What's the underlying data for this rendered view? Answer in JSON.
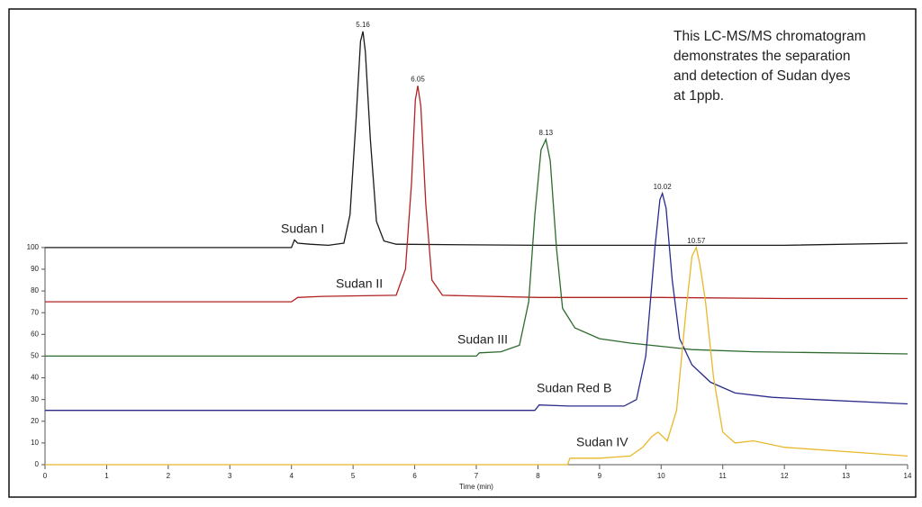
{
  "chart_data": {
    "type": "line",
    "annotation": [
      "This LC-MS/MS chromatogram",
      "demonstrates the separation",
      "and detection of Sudan dyes",
      "at 1ppb."
    ],
    "xlabel": "Time (min)",
    "xlim": [
      0,
      14
    ],
    "xticks": [
      0,
      1,
      2,
      3,
      4,
      5,
      6,
      7,
      8,
      9,
      10,
      11,
      12,
      13,
      14
    ],
    "ylim": [
      0,
      209
    ],
    "yticks": [
      0,
      10,
      20,
      30,
      40,
      50,
      60,
      70,
      80,
      90,
      100
    ],
    "series": [
      {
        "name": "Sudan I",
        "color": "#1a1a1a",
        "peak": 5.16,
        "x": [
          0,
          4.0,
          4.05,
          4.1,
          4.3,
          4.6,
          4.85,
          4.95,
          5.05,
          5.12,
          5.16,
          5.2,
          5.28,
          5.38,
          5.5,
          5.7,
          8,
          10,
          12,
          14
        ],
        "values": [
          100,
          100,
          103.5,
          102,
          101.5,
          101,
          102,
          115,
          160,
          195,
          199.5,
          190,
          150,
          112,
          103,
          101.5,
          101,
          101,
          101,
          102
        ]
      },
      {
        "name": "Sudan II",
        "color": "#b22222",
        "peak": 6.05,
        "x": [
          0,
          4.0,
          4.1,
          4.5,
          5.7,
          5.85,
          5.95,
          6.01,
          6.05,
          6.1,
          6.18,
          6.28,
          6.45,
          8,
          10,
          12,
          14
        ],
        "values": [
          75,
          75,
          77,
          77.5,
          78,
          90,
          130,
          168,
          174.5,
          165,
          120,
          85,
          78,
          77,
          77,
          76.5,
          76.5
        ]
      },
      {
        "name": "Sudan III",
        "color": "#2e6b2e",
        "peak": 8.13,
        "x": [
          0,
          7.0,
          7.05,
          7.4,
          7.7,
          7.85,
          7.95,
          8.05,
          8.13,
          8.2,
          8.3,
          8.4,
          8.6,
          9,
          9.5,
          10.5,
          11.5,
          14
        ],
        "values": [
          50,
          50,
          51.5,
          52,
          55,
          75,
          115,
          145,
          149.8,
          140,
          100,
          72,
          63,
          58,
          56,
          53,
          52,
          51
        ]
      },
      {
        "name": "Sudan Red B",
        "color": "#2b2b8c",
        "peak": 10.02,
        "x": [
          0,
          7.95,
          8.02,
          8.5,
          9.4,
          9.6,
          9.75,
          9.9,
          9.98,
          10.02,
          10.08,
          10.18,
          10.3,
          10.5,
          10.8,
          11.2,
          11.8,
          12.5,
          14
        ],
        "values": [
          25,
          25,
          27.5,
          27,
          27,
          30,
          50,
          100,
          122,
          124.9,
          118,
          85,
          58,
          46,
          38,
          33,
          31,
          30,
          28
        ]
      },
      {
        "name": "Sudan IV",
        "color": "#e8b82a",
        "peak": 10.57,
        "x": [
          0,
          8.48,
          8.52,
          9,
          9.5,
          9.7,
          9.85,
          9.95,
          10.1,
          10.25,
          10.4,
          10.5,
          10.57,
          10.63,
          10.72,
          10.85,
          11,
          11.2,
          11.5,
          12,
          13,
          14
        ],
        "values": [
          0,
          0,
          3,
          3,
          4,
          8,
          13,
          15,
          11,
          25,
          70,
          96,
          100,
          92,
          75,
          40,
          15,
          10,
          11,
          8,
          6,
          4
        ]
      }
    ]
  }
}
